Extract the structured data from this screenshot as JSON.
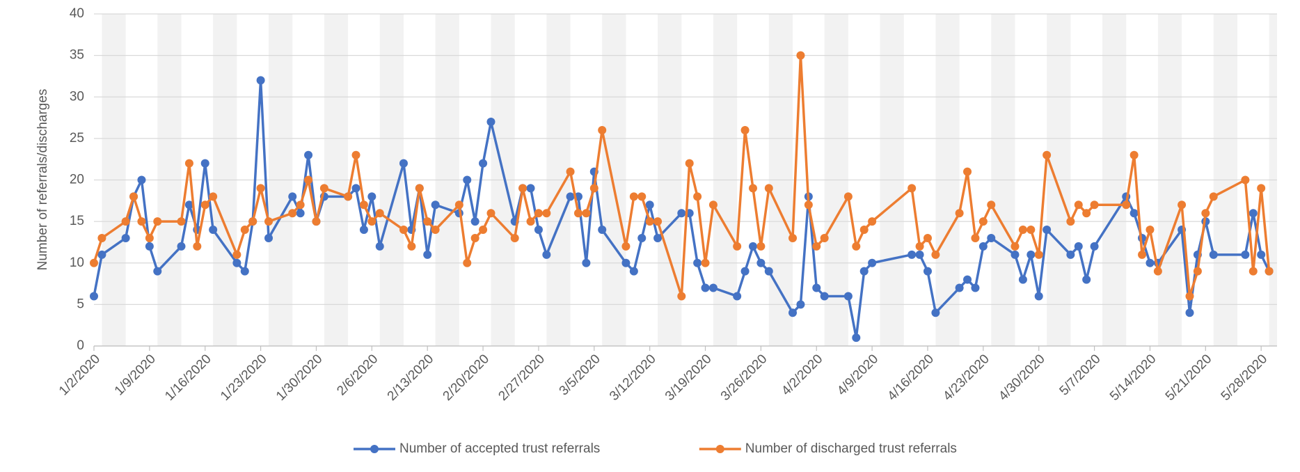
{
  "chart_data": {
    "type": "line",
    "y_label": "Number of referrals/discharges",
    "x": [
      "1/2/2020",
      "1/3/2020",
      "1/6/2020",
      "1/7/2020",
      "1/8/2020",
      "1/9/2020",
      "1/10/2020",
      "1/13/2020",
      "1/14/2020",
      "1/15/2020",
      "1/16/2020",
      "1/17/2020",
      "1/20/2020",
      "1/21/2020",
      "1/22/2020",
      "1/23/2020",
      "1/24/2020",
      "1/27/2020",
      "1/28/2020",
      "1/29/2020",
      "1/30/2020",
      "1/31/2020",
      "2/3/2020",
      "2/4/2020",
      "2/5/2020",
      "2/6/2020",
      "2/7/2020",
      "2/10/2020",
      "2/11/2020",
      "2/12/2020",
      "2/13/2020",
      "2/14/2020",
      "2/17/2020",
      "2/18/2020",
      "2/19/2020",
      "2/20/2020",
      "2/21/2020",
      "2/24/2020",
      "2/25/2020",
      "2/26/2020",
      "2/27/2020",
      "2/28/2020",
      "3/2/2020",
      "3/3/2020",
      "3/4/2020",
      "3/5/2020",
      "3/6/2020",
      "3/9/2020",
      "3/10/2020",
      "3/11/2020",
      "3/12/2020",
      "3/13/2020",
      "3/16/2020",
      "3/17/2020",
      "3/18/2020",
      "3/19/2020",
      "3/20/2020",
      "3/23/2020",
      "3/24/2020",
      "3/25/2020",
      "3/26/2020",
      "3/27/2020",
      "3/30/2020",
      "3/31/2020",
      "4/1/2020",
      "4/2/2020",
      "4/3/2020",
      "4/6/2020",
      "4/7/2020",
      "4/8/2020",
      "4/9/2020",
      "4/14/2020",
      "4/15/2020",
      "4/16/2020",
      "4/17/2020",
      "4/20/2020",
      "4/21/2020",
      "4/22/2020",
      "4/23/2020",
      "4/24/2020",
      "4/27/2020",
      "4/28/2020",
      "4/29/2020",
      "4/30/2020",
      "5/1/2020",
      "5/4/2020",
      "5/5/2020",
      "5/6/2020",
      "5/7/2020",
      "5/11/2020",
      "5/12/2020",
      "5/13/2020",
      "5/14/2020",
      "5/15/2020",
      "5/18/2020",
      "5/19/2020",
      "5/20/2020",
      "5/21/2020",
      "5/22/2020",
      "5/26/2020",
      "5/27/2020",
      "5/28/2020",
      "5/29/2020"
    ],
    "series": [
      {
        "name": "Number of accepted trust referrals",
        "color": "#4472c4",
        "values": [
          6,
          11,
          13,
          18,
          20,
          12,
          9,
          12,
          17,
          14,
          22,
          14,
          10,
          9,
          15,
          32,
          13,
          18,
          16,
          23,
          15,
          18,
          18,
          19,
          14,
          18,
          12,
          22,
          14,
          19,
          11,
          17,
          16,
          20,
          15,
          22,
          27,
          15,
          19,
          19,
          14,
          11,
          18,
          18,
          10,
          21,
          14,
          10,
          9,
          13,
          17,
          13,
          16,
          16,
          10,
          7,
          7,
          6,
          9,
          12,
          10,
          9,
          4,
          5,
          18,
          7,
          6,
          6,
          1,
          9,
          10,
          11,
          11,
          9,
          4,
          7,
          8,
          7,
          12,
          13,
          11,
          8,
          11,
          6,
          14,
          11,
          12,
          8,
          12,
          18,
          16,
          13,
          10,
          10,
          14,
          4,
          11,
          15,
          11,
          11,
          16,
          11,
          9
        ]
      },
      {
        "name": "Number of discharged trust referrals",
        "color": "#ed7d31",
        "values": [
          10,
          13,
          15,
          18,
          15,
          13,
          15,
          15,
          22,
          12,
          17,
          18,
          11,
          14,
          15,
          19,
          15,
          16,
          17,
          20,
          15,
          19,
          18,
          23,
          17,
          15,
          16,
          14,
          12,
          19,
          15,
          14,
          17,
          10,
          13,
          14,
          16,
          13,
          19,
          15,
          16,
          16,
          21,
          16,
          16,
          19,
          26,
          12,
          18,
          18,
          15,
          15,
          6,
          22,
          18,
          10,
          17,
          12,
          26,
          19,
          12,
          19,
          13,
          35,
          17,
          12,
          13,
          18,
          12,
          14,
          15,
          19,
          12,
          13,
          11,
          16,
          21,
          13,
          15,
          17,
          12,
          14,
          14,
          11,
          23,
          15,
          17,
          16,
          17,
          17,
          23,
          11,
          14,
          9,
          17,
          6,
          9,
          16,
          18,
          20,
          9,
          19,
          9
        ]
      }
    ],
    "xlim": [
      "1/2/2020",
      "5/30/2020"
    ],
    "xticks": [
      "1/2/2020",
      "1/9/2020",
      "1/16/2020",
      "1/23/2020",
      "1/30/2020",
      "2/6/2020",
      "2/13/2020",
      "2/20/2020",
      "2/27/2020",
      "3/5/2020",
      "3/12/2020",
      "3/19/2020",
      "3/26/2020",
      "4/2/2020",
      "4/9/2020",
      "4/16/2020",
      "4/23/2020",
      "4/30/2020",
      "5/7/2020",
      "5/14/2020",
      "5/21/2020",
      "5/28/2020"
    ],
    "ylim": [
      0,
      40
    ],
    "yticks": [
      0,
      5,
      10,
      15,
      20,
      25,
      30,
      35,
      40
    ],
    "grid": true,
    "legend": "bottom"
  }
}
